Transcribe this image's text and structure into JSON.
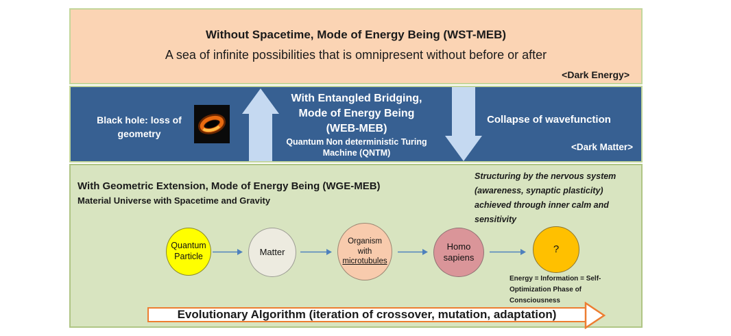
{
  "top_box": {
    "title": "Without Spacetime, Mode of Energy Being (WST-MEB)",
    "subtitle": "A sea of infinite possibilities that is omnipresent without before or after",
    "tag": "<Dark Energy>"
  },
  "middle_box": {
    "black_hole_lines": [
      "Black hole: loss of",
      "geometry"
    ],
    "black_hole_image": "black-hole-photo",
    "title_lines": [
      "With Entangled Bridging,",
      "Mode of Energy Being",
      "(WEB-MEB)"
    ],
    "subtitle_lines": [
      "Quantum Non deterministic Turing",
      "Machine (QNTM)"
    ],
    "collapse_label": "Collapse of wavefunction",
    "tag": "<Dark Matter>"
  },
  "bottom_box": {
    "title": "With Geometric Extension, Mode of Energy Being (WGE-MEB)",
    "subtitle": "Material Universe with Spacetime and Gravity",
    "note": "Structuring by the nervous system (awareness, synaptic plasticity) achieved through inner calm and sensitivity",
    "energy_note_lines": [
      "Energy = Information = Self-",
      "Optimization Phase of",
      "Consciousness"
    ],
    "banner_label": "Evolutionary Algorithm (iteration of crossover, mutation, adaptation)",
    "stages": [
      {
        "name": "quantum-particle",
        "lines": [
          "Quantum",
          "Particle"
        ],
        "fill": "#FFFF00",
        "stroke": "#8a8a2b"
      },
      {
        "name": "matter",
        "lines": [
          "Matter"
        ],
        "fill": "#EDEBE0",
        "stroke": "#9b9b93"
      },
      {
        "name": "organism-with-microtubules",
        "lines": [
          "Organism",
          "with",
          "microtubules"
        ],
        "underlined_line": 2,
        "fill": "#F8CBAD",
        "stroke": "#9b8672"
      },
      {
        "name": "homo-sapiens",
        "lines": [
          "Homo",
          "sapiens"
        ],
        "fill": "#DA9599",
        "stroke": "#8f7173"
      },
      {
        "name": "question-mark",
        "lines": [
          "?"
        ],
        "fill": "#FFC000",
        "stroke": "#8a7430"
      }
    ]
  },
  "colors": {
    "top_box_fill": "#FBD4B4",
    "middle_box_fill": "#376092",
    "bottom_box_fill": "#D8E4C0",
    "box_border": "#C3D69B",
    "bottom_box_border": "#AFC584",
    "block_arrow": "#C5D9F1",
    "flow_arrow": "#4E81BD",
    "banner_border": "#ED7D31"
  }
}
